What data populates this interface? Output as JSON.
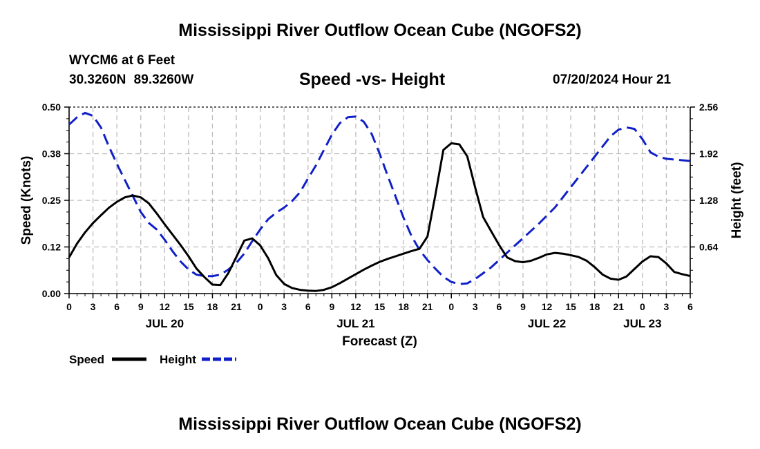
{
  "header": {
    "main_title": "Mississippi River Outflow Ocean Cube (NGOFS2)",
    "station": "WYCM6 at 6 Feet",
    "coords": "30.3260N 89.3260W",
    "chart_title": "Speed -vs- Height",
    "forecast_time": "07/20/2024 Hour 21"
  },
  "footer": {
    "title": "Mississippi River Outflow Ocean Cube (NGOFS2)"
  },
  "chart_data": {
    "type": "line",
    "title": "Speed -vs- Height",
    "xlabel": "Forecast (Z)",
    "ylabel": "Speed (Knots)",
    "y2label": "Height (feet)",
    "x_range_hours": [
      0,
      78
    ],
    "xtick_labels": [
      "0",
      "3",
      "6",
      "9",
      "12",
      "15",
      "18",
      "21",
      "0",
      "3",
      "6",
      "9",
      "12",
      "15",
      "18",
      "21",
      "0",
      "3",
      "6",
      "9",
      "12",
      "15",
      "18",
      "21",
      "0",
      "3",
      "6"
    ],
    "date_labels": [
      {
        "label": "JUL 20",
        "hour": 12
      },
      {
        "label": "JUL 21",
        "hour": 36
      },
      {
        "label": "JUL 22",
        "hour": 60
      },
      {
        "label": "JUL 23",
        "hour": 72
      }
    ],
    "ylim": [
      0,
      0.5
    ],
    "ytick_labels": [
      "0.00",
      "0.12",
      "0.25",
      "0.38",
      "0.50"
    ],
    "y2lim": [
      0,
      2.56
    ],
    "y2tick_labels": [
      "0.64",
      "1.28",
      "1.92",
      "2.56"
    ],
    "grid": true,
    "legend_position": "bottom-left",
    "colors": {
      "speed": "#000000",
      "height": "#1020c8",
      "grid": "#bbbbbb"
    },
    "series": [
      {
        "name": "Speed",
        "axis": "left",
        "style": "solid",
        "x": [
          0,
          1,
          2,
          3,
          4,
          5,
          6,
          7,
          8,
          9,
          10,
          11,
          12,
          13,
          14,
          15,
          16,
          17,
          18,
          19,
          20,
          21,
          22,
          23,
          24,
          25,
          26,
          27,
          28,
          29,
          30,
          31,
          32,
          33,
          34,
          35,
          36,
          37,
          38,
          39,
          40,
          41,
          42,
          43,
          44,
          45,
          46,
          47,
          48,
          49,
          50,
          51,
          52,
          53,
          54,
          55,
          56,
          57,
          58,
          59,
          60,
          61,
          62,
          63,
          64,
          65,
          66,
          67,
          68,
          69,
          70,
          71,
          72,
          73,
          74,
          75,
          76,
          77,
          78
        ],
        "values": [
          0.097,
          0.134,
          0.164,
          0.189,
          0.21,
          0.23,
          0.246,
          0.258,
          0.263,
          0.258,
          0.242,
          0.215,
          0.186,
          0.158,
          0.13,
          0.1,
          0.067,
          0.044,
          0.024,
          0.023,
          0.055,
          0.098,
          0.142,
          0.148,
          0.129,
          0.095,
          0.05,
          0.026,
          0.015,
          0.01,
          0.008,
          0.007,
          0.01,
          0.017,
          0.028,
          0.04,
          0.052,
          0.064,
          0.075,
          0.085,
          0.093,
          0.1,
          0.107,
          0.114,
          0.12,
          0.153,
          0.265,
          0.385,
          0.403,
          0.4,
          0.368,
          0.284,
          0.205,
          0.167,
          0.13,
          0.097,
          0.087,
          0.084,
          0.088,
          0.096,
          0.105,
          0.109,
          0.107,
          0.103,
          0.098,
          0.088,
          0.071,
          0.051,
          0.04,
          0.037,
          0.046,
          0.066,
          0.086,
          0.1,
          0.098,
          0.081,
          0.058,
          0.052,
          0.047
        ]
      },
      {
        "name": "Height",
        "axis": "right",
        "style": "dashed",
        "x": [
          0,
          1,
          2,
          3,
          4,
          5,
          6,
          7,
          8,
          9,
          10,
          11,
          12,
          13,
          14,
          15,
          16,
          17,
          18,
          19,
          20,
          21,
          22,
          23,
          24,
          25,
          26,
          27,
          28,
          29,
          30,
          31,
          32,
          33,
          34,
          35,
          36,
          37,
          38,
          39,
          40,
          41,
          42,
          43,
          44,
          45,
          46,
          47,
          48,
          49,
          50,
          51,
          52,
          53,
          54,
          55,
          56,
          57,
          58,
          59,
          60,
          61,
          62,
          63,
          64,
          65,
          66,
          67,
          68,
          69,
          70,
          71,
          72,
          73,
          74,
          75,
          76,
          77,
          78
        ],
        "values": [
          2.32,
          2.42,
          2.48,
          2.44,
          2.28,
          2.02,
          1.78,
          1.56,
          1.34,
          1.12,
          0.97,
          0.88,
          0.74,
          0.58,
          0.44,
          0.33,
          0.26,
          0.24,
          0.24,
          0.26,
          0.33,
          0.42,
          0.55,
          0.72,
          0.88,
          1.02,
          1.11,
          1.18,
          1.27,
          1.39,
          1.58,
          1.76,
          1.97,
          2.18,
          2.34,
          2.42,
          2.43,
          2.36,
          2.19,
          1.92,
          1.62,
          1.33,
          1.04,
          0.79,
          0.6,
          0.46,
          0.34,
          0.23,
          0.16,
          0.13,
          0.14,
          0.2,
          0.28,
          0.36,
          0.46,
          0.56,
          0.66,
          0.76,
          0.86,
          0.96,
          1.07,
          1.18,
          1.32,
          1.46,
          1.6,
          1.74,
          1.88,
          2.02,
          2.16,
          2.25,
          2.28,
          2.26,
          2.12,
          1.94,
          1.88,
          1.85,
          1.84,
          1.83,
          1.82
        ]
      }
    ],
    "legend": [
      {
        "label": "Speed",
        "style": "solid"
      },
      {
        "label": "Height",
        "style": "dashed"
      }
    ]
  }
}
